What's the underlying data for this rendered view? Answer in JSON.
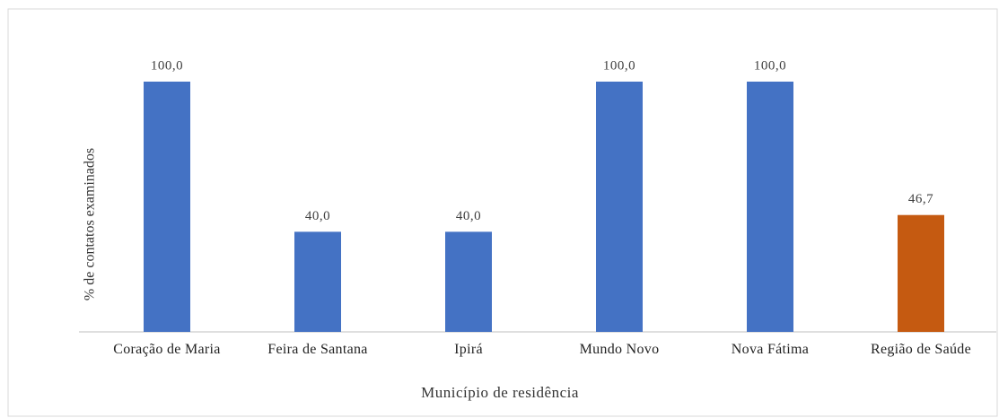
{
  "chart_data": {
    "type": "bar",
    "categories": [
      "Coração de Maria",
      "Feira de Santana",
      "Ipirá",
      "Mundo Novo",
      "Nova Fátima",
      "Região de Saúde"
    ],
    "values": [
      100,
      40,
      40,
      100,
      100,
      46.7
    ],
    "value_labels": [
      "100,0",
      "40,0",
      "40,0",
      "100,0",
      "100,0",
      "46,7"
    ],
    "colors": [
      "#4472c4",
      "#4472c4",
      "#4472c4",
      "#4472c4",
      "#4472c4",
      "#c55a11"
    ],
    "ylim": [
      0,
      100
    ],
    "x_label": "Município de residência",
    "y_label": "% de  contatos examinados"
  }
}
